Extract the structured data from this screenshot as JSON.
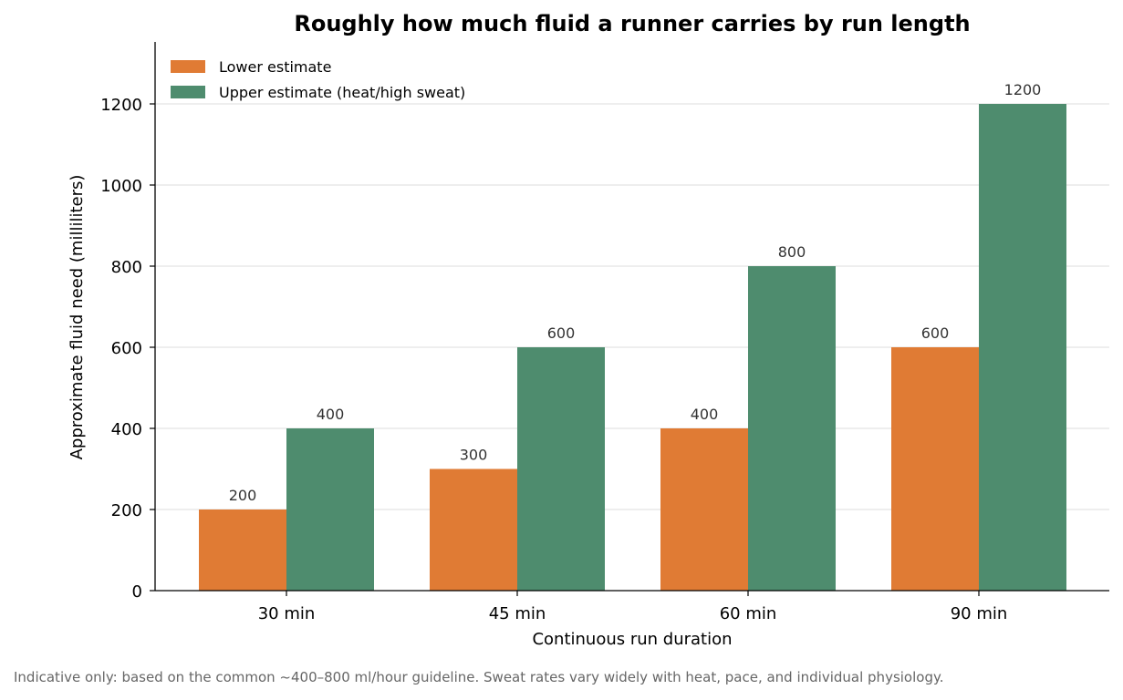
{
  "chart_data": {
    "type": "bar",
    "title": "Roughly how much fluid a runner carries by run length",
    "xlabel": "Continuous run duration",
    "ylabel": "Approximate fluid need (milliliters)",
    "categories": [
      "30 min",
      "45 min",
      "60 min",
      "90 min"
    ],
    "series": [
      {
        "name": "Lower estimate",
        "values": [
          200,
          300,
          400,
          600
        ],
        "color": "#E07B34"
      },
      {
        "name": "Upper estimate (heat/high sweat)",
        "values": [
          400,
          600,
          800,
          1200
        ],
        "color": "#4E8C6E"
      }
    ],
    "ylim": [
      0,
      1350
    ],
    "yticks": [
      "0",
      "200",
      "400",
      "600",
      "800",
      "1000",
      "1200"
    ],
    "grid": "horizontal",
    "legend": "top-left",
    "data_labels": true
  },
  "footnote": "Indicative only: based on the common ~400–800 ml/hour guideline. Sweat rates vary widely with heat, pace, and individual physiology."
}
